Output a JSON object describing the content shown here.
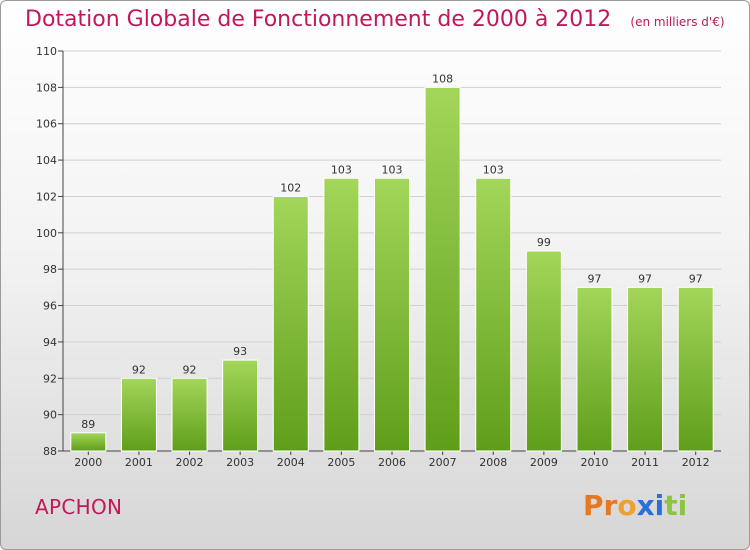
{
  "header": {
    "title": "Dotation Globale de Fonctionnement de 2000 à 2012",
    "subtitle": "(en milliers d'€)"
  },
  "footer": {
    "commune": "APCHON",
    "logo_text": "Proxiti",
    "logo_colors": [
      "#e87722",
      "#e87722",
      "#f0a030",
      "#2a6fdb",
      "#2a6fdb",
      "#8cc63f",
      "#8cc63f"
    ]
  },
  "colors": {
    "title": "#c2185b",
    "bar_top": "#a3d65a",
    "bar_bottom": "#5f9e1a"
  },
  "chart_data": {
    "type": "bar",
    "title": "Dotation Globale de Fonctionnement de 2000 à 2012",
    "subtitle": "(en milliers d'€)",
    "categories": [
      "2000",
      "2001",
      "2002",
      "2003",
      "2004",
      "2005",
      "2006",
      "2007",
      "2008",
      "2009",
      "2010",
      "2011",
      "2012"
    ],
    "values": [
      89,
      92,
      92,
      93,
      102,
      103,
      103,
      108,
      103,
      99,
      97,
      97,
      97
    ],
    "ylim": [
      88,
      110
    ],
    "yticks": [
      88,
      90,
      92,
      94,
      96,
      98,
      100,
      102,
      104,
      106,
      108,
      110
    ],
    "grid": true,
    "legend": "none"
  }
}
